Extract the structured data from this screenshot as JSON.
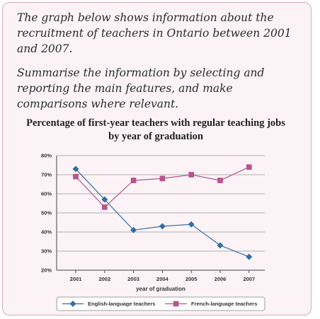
{
  "task": {
    "paragraph1": "The graph below shows information about the recruitment of teachers in Ontario between 2001 and 2007.",
    "paragraph2": "Summarise the information by selecting and reporting the main features, and make comparisons where relevant."
  },
  "colors": {
    "card_background": "#fbf3f6",
    "card_border": "#d9a9bd",
    "english_series": "#2e6ea6",
    "french_series": "#b8548f",
    "gridline": "#9a9a9a"
  },
  "chart_data": {
    "type": "line",
    "title": "Percentage of first-year teachers with regular teaching jobs by year of graduation",
    "xlabel": "year of graduation",
    "ylabel": "",
    "x": [
      "2001",
      "2002",
      "2003",
      "2004",
      "2005",
      "2006",
      "2007"
    ],
    "ylim": [
      20,
      80
    ],
    "yticks": [
      20,
      30,
      40,
      50,
      60,
      70,
      80
    ],
    "ytick_labels": [
      "20%",
      "30%",
      "40%",
      "50%",
      "60%",
      "70%",
      "80%"
    ],
    "grid": true,
    "legend_position": "bottom",
    "series": [
      {
        "name": "English-language teachers",
        "marker": "diamond",
        "values": [
          73,
          57,
          41,
          43,
          44,
          33,
          27
        ]
      },
      {
        "name": "French-language teachers",
        "marker": "square",
        "values": [
          69,
          53,
          67,
          68,
          70,
          67,
          74
        ]
      }
    ]
  }
}
